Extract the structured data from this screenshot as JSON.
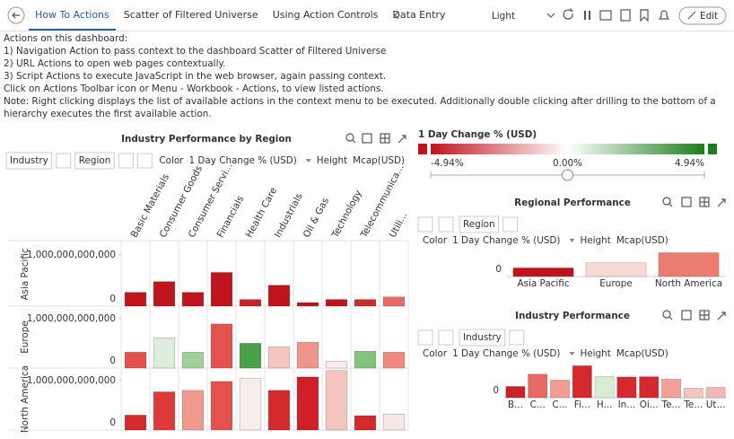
{
  "tabs": [
    "How To Actions",
    "Scatter of Filtered Universe",
    "Using Action Controls",
    "Data Entry"
  ],
  "toolbar": {
    "theme": "Light",
    "edit": "Edit"
  },
  "description": [
    "Actions on this dashboard:",
    "1) Navigation Action to pass context to the dashboard Scatter of Filtered Universe",
    "2) URL Actions to open web pages contextually.",
    "3) Script Actions to execute JavaScript in the web browser, again passing context.",
    "Click on Actions Toolbar icon or Menu - Workbook - Actions, to view listed actions.",
    "Note: Right clicking displays the list of available actions in the context menu to be executed.   Additionally double clicking after drilling to the bottom of a hierarchy executes the first available action."
  ],
  "chart_data": [
    {
      "type": "trellis-bar",
      "title": "Industry Performance by Region",
      "controls": {
        "dimensions": [
          "Industry",
          "Region"
        ],
        "color_label": "Color",
        "color_field": "1 Day Change % (USD)",
        "height_label": "Height",
        "height_field": "Mcap(USD)"
      },
      "categories": [
        "Basic Materials",
        "Consumer Goods",
        "Consumer Servi...",
        "Financials",
        "Health Care",
        "Industrials",
        "Oil & Gas",
        "Technology",
        "Telecommunica...",
        "Utili..."
      ],
      "series": [
        {
          "name": "Asia Pacific",
          "values": [
            270000000000,
            480000000000,
            270000000000,
            660000000000,
            130000000000,
            410000000000,
            70000000000,
            130000000000,
            130000000000,
            180000000000
          ],
          "colors": [
            "#c0141c",
            "#c0141c",
            "#c0141c",
            "#c0141c",
            "#c8232b",
            "#c0141c",
            "#c0141c",
            "#c0141c",
            "#c92a2a",
            "#e86a62"
          ]
        },
        {
          "name": "Europe",
          "values": [
            320000000000,
            610000000000,
            320000000000,
            890000000000,
            500000000000,
            430000000000,
            520000000000,
            140000000000,
            340000000000,
            320000000000
          ],
          "colors": [
            "#e5524d",
            "#dfeedc",
            "#9fd19a",
            "#e5524d",
            "#4aa048",
            "#f5c6c0",
            "#f0958c",
            "#fbeaea",
            "#82c47c",
            "#ee8a80"
          ]
        },
        {
          "name": "North America",
          "values": [
            300000000000,
            770000000000,
            800000000000,
            980000000000,
            1040000000000,
            800000000000,
            1070000000000,
            1200000000000,
            290000000000,
            320000000000
          ],
          "colors": [
            "#d42a2e",
            "#dd3b3b",
            "#f0998f",
            "#e5524d",
            "#f7eeec",
            "#d42a2e",
            "#d01f26",
            "#f5c6c0",
            "#d42a2e",
            "#f7e8e6"
          ]
        }
      ],
      "ylim": [
        0,
        1250000000000
      ],
      "yticks": [
        0,
        {
          "value": 1000000000000,
          "label": "1,000,000,000,000"
        }
      ]
    },
    {
      "type": "colorscale",
      "title": "1 Day Change % (USD)",
      "xlim": [
        -4.94,
        4.94
      ],
      "xticks": [
        {
          "value": -4.94,
          "label": "-4.94%"
        },
        {
          "value": 0,
          "label": "0.00%"
        },
        {
          "value": 4.94,
          "label": "4.94%"
        }
      ],
      "colors": [
        "#c0141c",
        "#ffffff",
        "#1e7d1e"
      ]
    },
    {
      "type": "bar",
      "title": "Regional Performance",
      "controls": {
        "dimensions": [
          "Region"
        ],
        "color_label": "Color",
        "color_field": "1 Day Change % (USD)",
        "height_label": "Height",
        "height_field": "Mcap(USD)"
      },
      "categories": [
        "Asia Pacific",
        "Europe",
        "North America"
      ],
      "values": [
        2730000000000,
        4390000000000,
        7570000000000
      ],
      "colors": [
        "#c0141c",
        "#f7d8d4",
        "#ec7b72"
      ],
      "ylim": [
        0,
        8000000000000
      ],
      "yticks": [
        0
      ]
    },
    {
      "type": "bar",
      "title": "Industry Performance",
      "controls": {
        "dimensions": [
          "Industry"
        ],
        "color_label": "Color",
        "color_field": "1 Day Change % (USD)",
        "height_label": "Height",
        "height_field": "Mcap(USD)"
      },
      "categories": [
        "B...",
        "C...",
        "C...",
        "Fi...",
        "H...",
        "In...",
        "Oi...",
        "Te...",
        "Te...",
        "Ut..."
      ],
      "values": [
        890000000000,
        1860000000000,
        1390000000000,
        2530000000000,
        1670000000000,
        1640000000000,
        1660000000000,
        1470000000000,
        760000000000,
        820000000000
      ],
      "colors": [
        "#c8232b",
        "#e86a62",
        "#f29c92",
        "#d42a2e",
        "#d8ecd4",
        "#d42a2e",
        "#d42a2e",
        "#f0a097",
        "#f5c6c0",
        "#f3b8b0"
      ],
      "ylim": [
        0,
        2700000000000
      ],
      "yticks": [
        0
      ]
    }
  ]
}
